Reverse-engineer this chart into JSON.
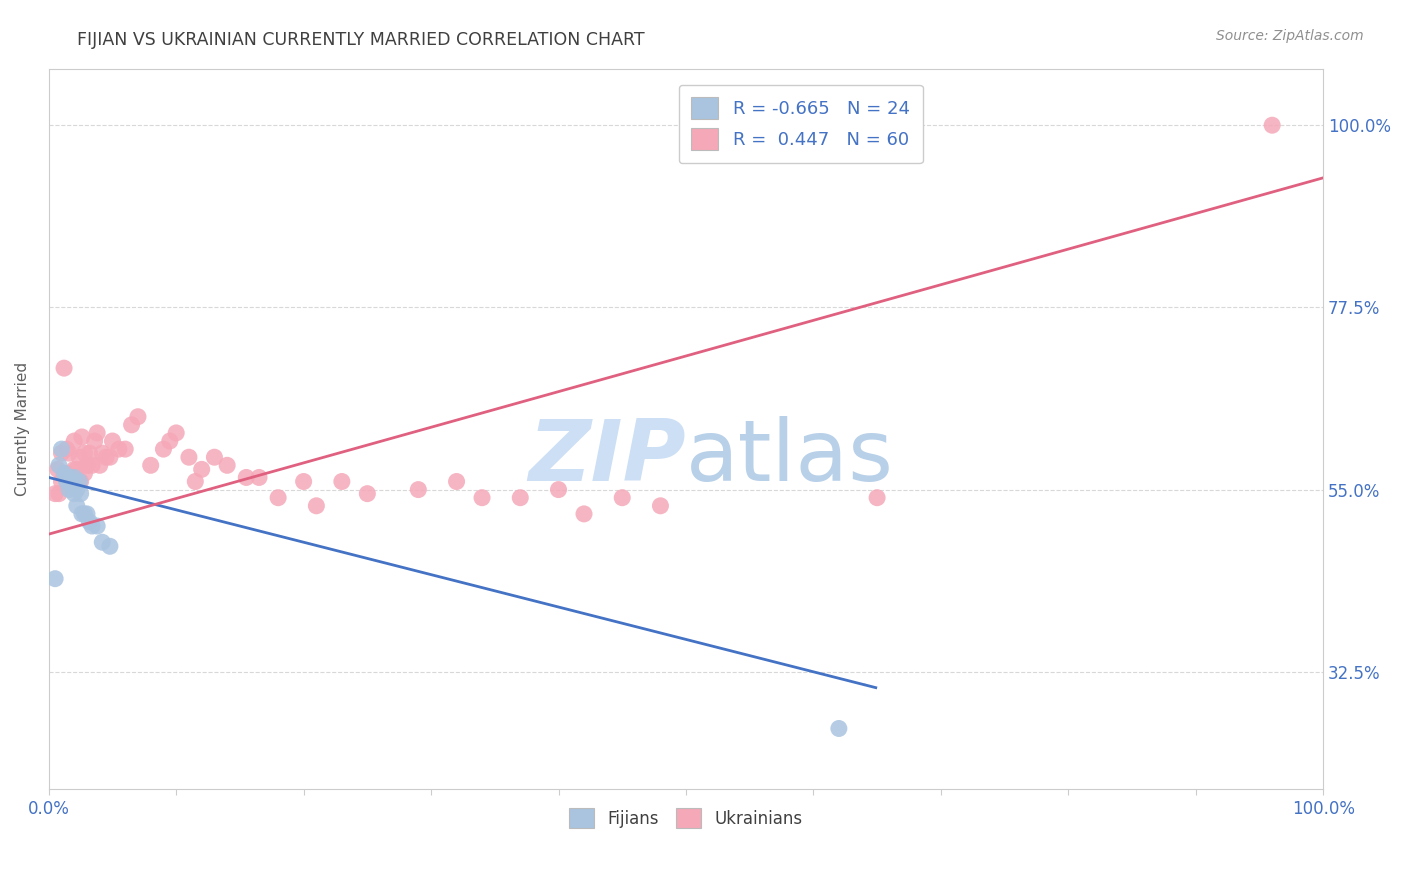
{
  "title": "FIJIAN VS UKRAINIAN CURRENTLY MARRIED CORRELATION CHART",
  "source": "Source: ZipAtlas.com",
  "ylabel": "Currently Married",
  "ylabel_ticks": [
    "100.0%",
    "77.5%",
    "55.0%",
    "32.5%"
  ],
  "ylabel_tick_vals": [
    1.0,
    0.775,
    0.55,
    0.325
  ],
  "xmin": 0.0,
  "xmax": 1.0,
  "ymin": 0.18,
  "ymax": 1.07,
  "legend1_R": "-0.665",
  "legend1_N": "24",
  "legend2_R": "0.447",
  "legend2_N": "60",
  "fijian_color": "#aac4e0",
  "ukrainian_color": "#f5a8b8",
  "fijian_line_color": "#4472c4",
  "ukrainian_line_color": "#e06080",
  "title_color": "#404040",
  "axis_label_color": "#4472c4",
  "watermark_zip_color": "#ccdff5",
  "watermark_atlas_color": "#b8d0e8",
  "background_color": "#ffffff",
  "grid_color": "#d8d8d8",
  "fijian_line_x0": 0.0,
  "fijian_line_y0": 0.565,
  "fijian_line_x1": 0.65,
  "fijian_line_y1": 0.305,
  "fijian_line_solid_end": 0.64,
  "ukrainian_line_x0": 0.0,
  "ukrainian_line_y0": 0.495,
  "ukrainian_line_x1": 1.0,
  "ukrainian_line_y1": 0.935,
  "fijians_x": [
    0.005,
    0.008,
    0.01,
    0.012,
    0.014,
    0.014,
    0.016,
    0.016,
    0.018,
    0.02,
    0.02,
    0.022,
    0.022,
    0.024,
    0.025,
    0.026,
    0.028,
    0.03,
    0.032,
    0.034,
    0.038,
    0.042,
    0.048,
    0.62
  ],
  "fijians_y": [
    0.44,
    0.58,
    0.6,
    0.57,
    0.565,
    0.56,
    0.565,
    0.55,
    0.555,
    0.545,
    0.565,
    0.55,
    0.53,
    0.56,
    0.545,
    0.52,
    0.52,
    0.52,
    0.51,
    0.505,
    0.505,
    0.485,
    0.48,
    0.255
  ],
  "ukrainians_x": [
    0.005,
    0.007,
    0.008,
    0.01,
    0.01,
    0.012,
    0.014,
    0.014,
    0.016,
    0.018,
    0.018,
    0.02,
    0.02,
    0.022,
    0.024,
    0.025,
    0.026,
    0.028,
    0.028,
    0.03,
    0.03,
    0.032,
    0.034,
    0.036,
    0.038,
    0.04,
    0.042,
    0.045,
    0.048,
    0.05,
    0.055,
    0.06,
    0.065,
    0.07,
    0.08,
    0.09,
    0.095,
    0.1,
    0.11,
    0.115,
    0.12,
    0.13,
    0.14,
    0.155,
    0.165,
    0.18,
    0.2,
    0.21,
    0.23,
    0.25,
    0.29,
    0.32,
    0.34,
    0.37,
    0.4,
    0.42,
    0.45,
    0.48,
    0.96,
    0.65
  ],
  "ukrainians_y": [
    0.545,
    0.575,
    0.545,
    0.595,
    0.56,
    0.7,
    0.6,
    0.57,
    0.595,
    0.565,
    0.56,
    0.575,
    0.61,
    0.575,
    0.59,
    0.56,
    0.615,
    0.595,
    0.57,
    0.58,
    0.58,
    0.595,
    0.58,
    0.61,
    0.62,
    0.58,
    0.595,
    0.59,
    0.59,
    0.61,
    0.6,
    0.6,
    0.63,
    0.64,
    0.58,
    0.6,
    0.61,
    0.62,
    0.59,
    0.56,
    0.575,
    0.59,
    0.58,
    0.565,
    0.565,
    0.54,
    0.56,
    0.53,
    0.56,
    0.545,
    0.55,
    0.56,
    0.54,
    0.54,
    0.55,
    0.52,
    0.54,
    0.53,
    1.0,
    0.54
  ]
}
